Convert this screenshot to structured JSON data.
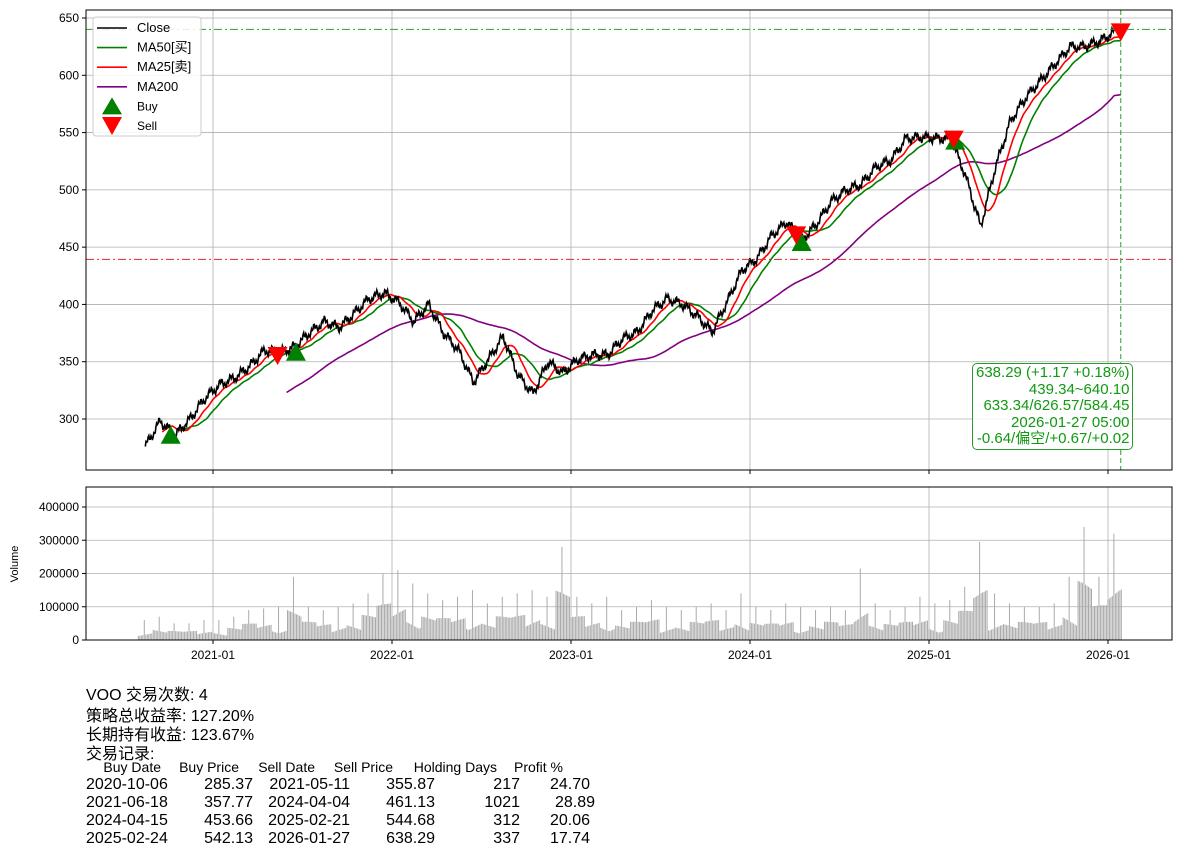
{
  "chart_data": [
    {
      "type": "line",
      "ticker": "VOO",
      "ylim": [
        260,
        660
      ],
      "yticks": [
        300,
        350,
        400,
        450,
        500,
        550,
        600,
        650
      ],
      "xticks": [
        "2021-01",
        "2022-01",
        "2023-01",
        "2024-01",
        "2025-01",
        "2026-01"
      ],
      "grid": true,
      "legend_placement": "upper-left",
      "legend": [
        "Close",
        "MA50[买]",
        "MA25[卖]",
        "MA200",
        "Buy",
        "Sell"
      ],
      "colors": {
        "close": "#000000",
        "ma50": "#008000",
        "ma25": "#ff0000",
        "ma200": "#800080",
        "buy": "#008000",
        "sell": "#ff0000"
      },
      "months": [
        "2020-08",
        "2020-09",
        "2020-10",
        "2020-11",
        "2020-12",
        "2021-01",
        "2021-02",
        "2021-03",
        "2021-04",
        "2021-05",
        "2021-06",
        "2021-07",
        "2021-08",
        "2021-09",
        "2021-10",
        "2021-11",
        "2021-12",
        "2022-01",
        "2022-02",
        "2022-03",
        "2022-04",
        "2022-05",
        "2022-06",
        "2022-07",
        "2022-08",
        "2022-09",
        "2022-10",
        "2022-11",
        "2022-12",
        "2023-01",
        "2023-02",
        "2023-03",
        "2023-04",
        "2023-05",
        "2023-06",
        "2023-07",
        "2023-08",
        "2023-09",
        "2023-10",
        "2023-11",
        "2023-12",
        "2024-01",
        "2024-02",
        "2024-03",
        "2024-04",
        "2024-05",
        "2024-06",
        "2024-07",
        "2024-08",
        "2024-09",
        "2024-10",
        "2024-11",
        "2024-12",
        "2025-01",
        "2025-02",
        "2025-03",
        "2025-04",
        "2025-05",
        "2025-06",
        "2025-07",
        "2025-08",
        "2025-09",
        "2025-10",
        "2025-11",
        "2025-12",
        "2026-01"
      ],
      "close": [
        276,
        298,
        286,
        300,
        318,
        330,
        336,
        346,
        360,
        358,
        363,
        375,
        385,
        380,
        392,
        405,
        410,
        402,
        385,
        400,
        375,
        360,
        332,
        352,
        372,
        338,
        322,
        350,
        340,
        352,
        356,
        356,
        370,
        376,
        395,
        405,
        400,
        390,
        376,
        402,
        430,
        440,
        460,
        472,
        456,
        470,
        490,
        500,
        505,
        520,
        526,
        545,
        546,
        545,
        545,
        512,
        468,
        520,
        560,
        580,
        595,
        610,
        625,
        625,
        630,
        638
      ],
      "hlines": [
        {
          "value": 640.1,
          "style": "dash-dot",
          "color": "#2ca02c"
        },
        {
          "value": 439.34,
          "style": "dash-dot",
          "color": "#d62728"
        }
      ],
      "vline": {
        "date": "2026-01-27",
        "style": "dashed",
        "color": "#2ca02c"
      },
      "buys": [
        {
          "date": "2020-10-06",
          "price": 285.37
        },
        {
          "date": "2021-06-18",
          "price": 357.77
        },
        {
          "date": "2024-04-15",
          "price": 453.66
        },
        {
          "date": "2025-02-24",
          "price": 542.13
        }
      ],
      "sells": [
        {
          "date": "2021-05-11",
          "price": 355.87
        },
        {
          "date": "2024-04-04",
          "price": 461.13
        },
        {
          "date": "2025-02-21",
          "price": 544.68
        },
        {
          "date": "2026-01-27",
          "price": 638.29
        }
      ]
    },
    {
      "type": "bar",
      "ylabel": "Volume",
      "ylim": [
        0,
        460000
      ],
      "yticks": [
        0,
        100000,
        200000,
        300000,
        400000
      ],
      "color": "#aaaaaa",
      "monthly_peak_volume": [
        60000,
        70000,
        50000,
        50000,
        60000,
        60000,
        70000,
        90000,
        95000,
        100000,
        190000,
        100000,
        90000,
        100000,
        110000,
        140000,
        200000,
        210000,
        170000,
        140000,
        120000,
        130000,
        150000,
        110000,
        130000,
        140000,
        150000,
        130000,
        280000,
        130000,
        110000,
        130000,
        90000,
        100000,
        120000,
        100000,
        90000,
        100000,
        110000,
        90000,
        140000,
        100000,
        90000,
        110000,
        100000,
        90000,
        100000,
        90000,
        215000,
        110000,
        90000,
        100000,
        130000,
        110000,
        120000,
        160000,
        295000,
        140000,
        110000,
        100000,
        100000,
        110000,
        190000,
        340000,
        190000,
        320000
      ]
    }
  ],
  "info_box": [
    "638.29 (+1.17 +0.18%)",
    "439.34~640.10",
    "633.34/626.57/584.45",
    "2026-01-27 05:00",
    "-0.64/偏空/+0.67/+0.02"
  ],
  "summary": {
    "trades": "VOO 交易次数: 4",
    "strategy_return": "策略总收益率: 127.20%",
    "buy_hold_return": "长期持有收益: 123.67%",
    "records_title": "交易记录:"
  },
  "table": {
    "headers": [
      "Buy Date",
      "Buy Price",
      "Sell Date",
      "Sell Price",
      "Holding Days",
      "Profit %"
    ],
    "rows": [
      [
        "2020-10-06",
        "285.37",
        "2021-05-11",
        "355.87",
        "217",
        "24.70"
      ],
      [
        "2021-06-18",
        "357.77",
        "2024-04-04",
        "461.13",
        "1021",
        "28.89"
      ],
      [
        "2024-04-15",
        "453.66",
        "2025-02-21",
        "544.68",
        "312",
        "20.06"
      ],
      [
        "2025-02-24",
        "542.13",
        "2026-01-27",
        "638.29",
        "337",
        "17.74"
      ]
    ]
  }
}
